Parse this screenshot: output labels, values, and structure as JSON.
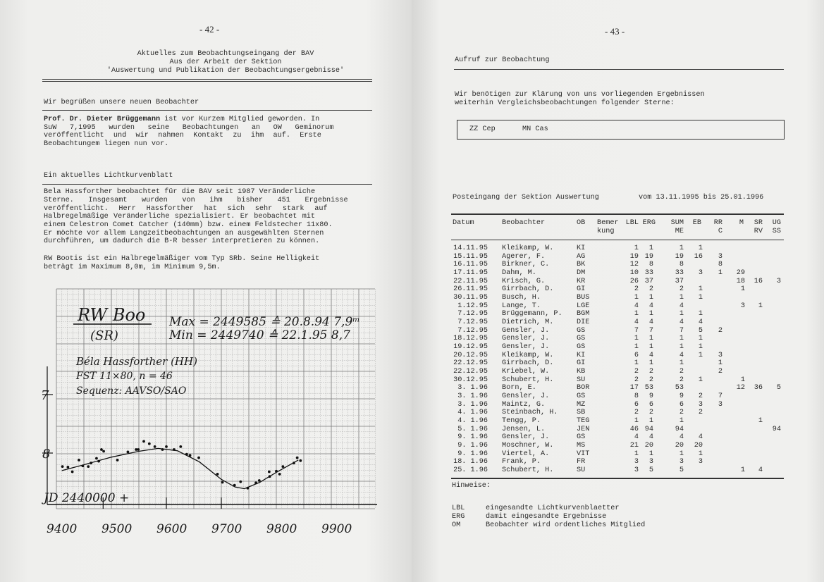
{
  "left_page": {
    "page_number": "- 42 -",
    "title_lines": [
      "Aktuelles zum Beobachtungseingang der BAV",
      "Aus der Arbeit der Sektion",
      "'Auswertung und Publikation der Beobachtungsergebnisse'"
    ],
    "section1": {
      "heading": "Wir begrüßen unsere neuen Beobachter",
      "name_bold": "Prof. Dr. Dieter Brüggemann",
      "lines": [
        " ist vor Kurzem Mitglied geworden. In",
        "SuW 7,1995 wurden seine Beobachtungen an OW Geminorum",
        "veröffentlicht und wir nahmen Kontakt zu ihm auf. Erste",
        "Beobachtungem liegen nun vor."
      ]
    },
    "section2": {
      "heading": "Ein aktuelles Lichtkurvenblatt",
      "lines": [
        "Bela Hassforther beobachtet für die BAV seit 1987 Veränderliche",
        "Sterne. Insgesamt wurden von ihm bisher 451 Ergebnisse",
        "veröffentlicht. Herr Hassforther hat sich sehr stark auf",
        "Halbregelmäßige Veränderliche spezialisiert. Er beobachtet mit",
        "einem Celestron Comet Catcher (140mm) bzw. einem Feldstecher 11x80.",
        "Er möchte vor allem Langzeitbeobachtungen an ausgewählten Sternen",
        "durchführen, um dadurch die B-R besser interpretieren zu können."
      ],
      "rw_lines": [
        "RW Bootis ist ein Halbregelmäßiger vom Typ SRb. Seine Helligkeit",
        "beträgt im Maximum 8,0m, im Minimum 9,5m."
      ]
    },
    "light_curve": {
      "star": "RW Boo",
      "type": "(SR)",
      "max_line": "Max = 2449585 ≙ 20.8.94 7,9ᵐ",
      "min_line": "Min = 2449740 ≙ 22.1.95 8,7",
      "observer": "Béla Hassforther (HH)",
      "instrument": "FST 11×80, n = 46",
      "sequence": "Sequenz: AAVSO/SAO",
      "xlabel": "JD 2440000 +",
      "x_ticks": [
        "9400",
        "9500",
        "9600",
        "9700",
        "9800",
        "9900"
      ],
      "y_ticks": [
        "7",
        "8"
      ],
      "points": [
        [
          9411,
          8.23
        ],
        [
          9421,
          8.24
        ],
        [
          9429,
          8.32
        ],
        [
          9441,
          8.12
        ],
        [
          9448,
          8.22
        ],
        [
          9458,
          8.23
        ],
        [
          9463,
          8.17
        ],
        [
          9473,
          8.09
        ],
        [
          9477,
          8.14
        ],
        [
          9482,
          7.94
        ],
        [
          9486,
          7.97
        ],
        [
          9511,
          8.12
        ],
        [
          9530,
          7.98
        ],
        [
          9545,
          7.94
        ],
        [
          9549,
          7.94
        ],
        [
          9559,
          7.8
        ],
        [
          9569,
          7.84
        ],
        [
          9579,
          7.89
        ],
        [
          9593,
          7.94
        ],
        [
          9600,
          7.89
        ],
        [
          9614,
          7.94
        ],
        [
          9626,
          7.89
        ],
        [
          9637,
          8.02
        ],
        [
          9643,
          8.04
        ],
        [
          9659,
          8.08
        ],
        [
          9693,
          8.36
        ],
        [
          9702,
          8.5
        ],
        [
          9724,
          8.55
        ],
        [
          9735,
          8.49
        ],
        [
          9748,
          8.6
        ],
        [
          9763,
          8.51
        ],
        [
          9769,
          8.47
        ],
        [
          9787,
          8.32
        ],
        [
          9788,
          8.4
        ],
        [
          9800,
          8.31
        ],
        [
          9806,
          8.36
        ],
        [
          9812,
          8.23
        ],
        [
          9832,
          8.17
        ],
        [
          9838,
          8.08
        ],
        [
          9844,
          8.13
        ]
      ],
      "fit_curve": [
        [
          9410,
          8.3
        ],
        [
          9450,
          8.2
        ],
        [
          9500,
          8.07
        ],
        [
          9550,
          7.97
        ],
        [
          9585,
          7.92
        ],
        [
          9620,
          7.96
        ],
        [
          9660,
          8.15
        ],
        [
          9700,
          8.45
        ],
        [
          9725,
          8.58
        ],
        [
          9742,
          8.61
        ],
        [
          9770,
          8.5
        ],
        [
          9800,
          8.33
        ],
        [
          9840,
          8.12
        ]
      ]
    }
  },
  "right_page": {
    "page_number": "- 43 -",
    "call_heading": "Aufruf zur Beobachtung",
    "call_lines": [
      "Wir benötigen zur Klärung von uns vorliegenden Ergebnissen",
      "weiterhin Vergleichsbeobachtungen folgender Sterne:"
    ],
    "stars": [
      "ZZ Cep",
      "MN Cas"
    ],
    "intake_title": "Posteingang der Sektion Auswertung",
    "intake_period": "vom 13.11.1995 bis 25.01.1996",
    "table": {
      "headers": [
        [
          "Datum",
          ""
        ],
        [
          "Beobachter",
          ""
        ],
        [
          "OB",
          ""
        ],
        [
          "Bemer",
          "kung"
        ],
        [
          "LBL",
          ""
        ],
        [
          "ERG",
          ""
        ],
        [
          "SUM",
          "ME"
        ],
        [
          "EB",
          ""
        ],
        [
          "RR",
          "C"
        ],
        [
          "M",
          ""
        ],
        [
          "SR",
          "RV"
        ],
        [
          "UG",
          "SS"
        ]
      ],
      "rows": [
        [
          "14.11.95",
          "Kleikamp, W.",
          "KI",
          "",
          "1",
          "1",
          "1",
          "1",
          "",
          "",
          "",
          ""
        ],
        [
          "15.11.95",
          "Agerer, F.",
          "AG",
          "",
          "19",
          "19",
          "19",
          "16",
          "3",
          "",
          "",
          ""
        ],
        [
          "16.11.95",
          "Birkner, C.",
          "BK",
          "",
          "12",
          "8",
          "8",
          "",
          "8",
          "",
          "",
          ""
        ],
        [
          "17.11.95",
          "Dahm, M.",
          "DM",
          "",
          "10",
          "33",
          "33",
          "3",
          "1",
          "29",
          "",
          ""
        ],
        [
          "22.11.95",
          "Krisch, G.",
          "KR",
          "",
          "26",
          "37",
          "37",
          "",
          "",
          "18",
          "16",
          "3"
        ],
        [
          "26.11.95",
          "Girrbach, D.",
          "GI",
          "",
          "2",
          "2",
          "2",
          "1",
          "",
          "1",
          "",
          ""
        ],
        [
          "30.11.95",
          "Busch, H.",
          "BUS",
          "",
          "1",
          "1",
          "1",
          "1",
          "",
          "",
          "",
          ""
        ],
        [
          "1.12.95",
          "Lange, T.",
          "LGE",
          "",
          "4",
          "4",
          "4",
          "",
          "",
          "3",
          "1",
          ""
        ],
        [
          "7.12.95",
          "Brüggemann, P.",
          "BGM",
          "",
          "1",
          "1",
          "1",
          "1",
          "",
          "",
          "",
          ""
        ],
        [
          "7.12.95",
          "Dietrich, M.",
          "DIE",
          "",
          "4",
          "4",
          "4",
          "4",
          "",
          "",
          "",
          ""
        ],
        [
          "7.12.95",
          "Gensler, J.",
          "GS",
          "",
          "7",
          "7",
          "7",
          "5",
          "2",
          "",
          "",
          ""
        ],
        [
          "18.12.95",
          "Gensler, J.",
          "GS",
          "",
          "1",
          "1",
          "1",
          "1",
          "",
          "",
          "",
          ""
        ],
        [
          "19.12.95",
          "Gensler, J.",
          "GS",
          "",
          "1",
          "1",
          "1",
          "1",
          "",
          "",
          "",
          ""
        ],
        [
          "20.12.95",
          "Kleikamp, W.",
          "KI",
          "",
          "6",
          "4",
          "4",
          "1",
          "3",
          "",
          "",
          ""
        ],
        [
          "22.12.95",
          "Girrbach, D.",
          "GI",
          "",
          "1",
          "1",
          "1",
          "",
          "1",
          "",
          "",
          ""
        ],
        [
          "22.12.95",
          "Kriebel, W.",
          "KB",
          "",
          "2",
          "2",
          "2",
          "",
          "2",
          "",
          "",
          ""
        ],
        [
          "30.12.95",
          "Schubert, H.",
          "SU",
          "",
          "2",
          "2",
          "2",
          "1",
          "",
          "1",
          "",
          ""
        ],
        [
          "3. 1.96",
          "Born, E.",
          "BOR",
          "",
          "17",
          "53",
          "53",
          "",
          "",
          "12",
          "36",
          "5"
        ],
        [
          "3. 1.96",
          "Gensler, J.",
          "GS",
          "",
          "8",
          "9",
          "9",
          "2",
          "7",
          "",
          "",
          ""
        ],
        [
          "3. 1.96",
          "Maintz, G.",
          "MZ",
          "",
          "6",
          "6",
          "6",
          "3",
          "3",
          "",
          "",
          ""
        ],
        [
          "4. 1.96",
          "Steinbach, H.",
          "SB",
          "",
          "2",
          "2",
          "2",
          "2",
          "",
          "",
          "",
          ""
        ],
        [
          "4. 1.96",
          "Tengg, P.",
          "TEG",
          "",
          "1",
          "1",
          "1",
          "",
          "",
          "",
          "1",
          ""
        ],
        [
          "5. 1.96",
          "Jensen, L.",
          "JEN",
          "",
          "46",
          "94",
          "94",
          "",
          "",
          "",
          "",
          "94"
        ],
        [
          "9. 1.96",
          "Gensler, J.",
          "GS",
          "",
          "4",
          "4",
          "4",
          "4",
          "",
          "",
          "",
          ""
        ],
        [
          "9. 1.96",
          "Moschner, W.",
          "MS",
          "",
          "21",
          "20",
          "20",
          "20",
          "",
          "",
          "",
          ""
        ],
        [
          "9. 1.96",
          "Viertel, A.",
          "VIT",
          "",
          "1",
          "1",
          "1",
          "1",
          "",
          "",
          "",
          ""
        ],
        [
          "18. 1.96",
          "Frank, P.",
          "FR",
          "",
          "3",
          "3",
          "3",
          "3",
          "",
          "",
          "",
          ""
        ],
        [
          "25. 1.96",
          "Schubert, H.",
          "SU",
          "",
          "3",
          "5",
          "5",
          "",
          "",
          "1",
          "4",
          ""
        ]
      ]
    },
    "notes_heading": "Hinweise:",
    "notes": [
      {
        "abbr": "LBL",
        "text": "eingesandte Lichtkurvenblaetter"
      },
      {
        "abbr": "ERG",
        "text": "damit eingesandte Ergebnisse"
      },
      {
        "abbr": "OM",
        "text": "Beobachter wird ordentliches Mitglied"
      }
    ]
  }
}
